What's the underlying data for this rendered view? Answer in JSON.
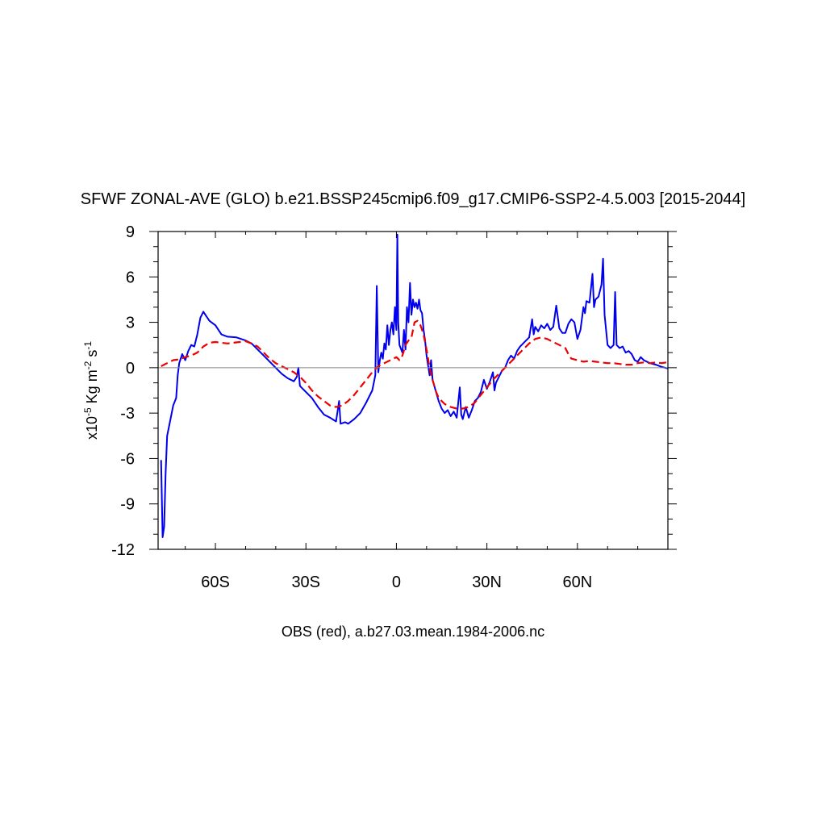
{
  "chart_data": {
    "type": "line",
    "title": "SFWF ZONAL-AVE (GLO) b.e21.BSSP245cmip6.f09_g17.CMIP6-SSP2-4.5.003 [2015-2044]",
    "subtitle": "OBS (red), a.b27.03.mean.1984-2006.nc",
    "ylabel": {
      "base": "x10",
      "exp1": "-5",
      "mid": " Kg m",
      "exp2": "-2",
      "mid2": " s",
      "exp3": "-1"
    },
    "xlim": [
      -79,
      90
    ],
    "ylim": [
      -12,
      9
    ],
    "x_ticks": [
      {
        "value": -60,
        "label": "60S"
      },
      {
        "value": -30,
        "label": "30S"
      },
      {
        "value": 0,
        "label": "0"
      },
      {
        "value": 30,
        "label": "30N"
      },
      {
        "value": 60,
        "label": "60N"
      }
    ],
    "y_ticks": [
      {
        "value": 9,
        "label": "9"
      },
      {
        "value": 6,
        "label": "6"
      },
      {
        "value": 3,
        "label": "3"
      },
      {
        "value": 0,
        "label": "0"
      },
      {
        "value": -3,
        "label": "-3"
      },
      {
        "value": -6,
        "label": "-6"
      },
      {
        "value": -9,
        "label": "-9"
      },
      {
        "value": -12,
        "label": "-12"
      }
    ],
    "zero_line": true,
    "series": [
      {
        "color": "#0000ee",
        "style": "solid",
        "points": [
          [
            -78,
            -6.1
          ],
          [
            -77.5,
            -11.2
          ],
          [
            -77,
            -10.5
          ],
          [
            -76.5,
            -7
          ],
          [
            -76,
            -4.5
          ],
          [
            -75,
            -3.5
          ],
          [
            -74,
            -2.5
          ],
          [
            -73,
            -2
          ],
          [
            -72.5,
            -0.5
          ],
          [
            -72,
            0.3
          ],
          [
            -71,
            0.9
          ],
          [
            -70,
            0.5
          ],
          [
            -69,
            1.1
          ],
          [
            -68,
            1.5
          ],
          [
            -67,
            1.4
          ],
          [
            -66,
            2.2
          ],
          [
            -65,
            3.3
          ],
          [
            -64,
            3.7
          ],
          [
            -63,
            3.4
          ],
          [
            -62,
            3.1
          ],
          [
            -60,
            2.8
          ],
          [
            -58,
            2.2
          ],
          [
            -56,
            2.05
          ],
          [
            -53,
            2.0
          ],
          [
            -50,
            1.8
          ],
          [
            -48,
            1.6
          ],
          [
            -46,
            1.2
          ],
          [
            -44,
            0.8
          ],
          [
            -42,
            0.4
          ],
          [
            -40,
            0.0
          ],
          [
            -38,
            -0.4
          ],
          [
            -36,
            -0.7
          ],
          [
            -34,
            -0.9
          ],
          [
            -33,
            -0.6
          ],
          [
            -32.5,
            0.0
          ],
          [
            -32,
            -1.2
          ],
          [
            -30,
            -1.6
          ],
          [
            -28,
            -2.0
          ],
          [
            -26,
            -2.6
          ],
          [
            -24,
            -3.1
          ],
          [
            -22,
            -3.3
          ],
          [
            -20,
            -3.55
          ],
          [
            -19,
            -2.2
          ],
          [
            -18.5,
            -3.7
          ],
          [
            -17,
            -3.6
          ],
          [
            -16,
            -3.7
          ],
          [
            -14,
            -3.4
          ],
          [
            -12,
            -3.0
          ],
          [
            -10,
            -2.3
          ],
          [
            -8,
            -1.5
          ],
          [
            -7,
            -0.5
          ],
          [
            -6.5,
            5.4
          ],
          [
            -6,
            -0.3
          ],
          [
            -5.5,
            0.5
          ],
          [
            -5,
            1.0
          ],
          [
            -4.5,
            0.6
          ],
          [
            -4,
            1.6
          ],
          [
            -3.5,
            1.2
          ],
          [
            -3,
            2.8
          ],
          [
            -2.5,
            1.5
          ],
          [
            -2,
            2.5
          ],
          [
            -1.5,
            3.0
          ],
          [
            -1,
            2.2
          ],
          [
            -0.5,
            4.0
          ],
          [
            0,
            2.5
          ],
          [
            0.3,
            8.8
          ],
          [
            0.6,
            3.0
          ],
          [
            1,
            1.5
          ],
          [
            2,
            1.0
          ],
          [
            2.5,
            2.5
          ],
          [
            3,
            1.2
          ],
          [
            3.5,
            4.0
          ],
          [
            4,
            3.0
          ],
          [
            4.5,
            5.6
          ],
          [
            5,
            3.5
          ],
          [
            5.5,
            4.5
          ],
          [
            6,
            4.0
          ],
          [
            6.5,
            4.3
          ],
          [
            7,
            3.9
          ],
          [
            7.5,
            4.5
          ],
          [
            8,
            3.8
          ],
          [
            8.5,
            3.6
          ],
          [
            9,
            2.5
          ],
          [
            9.5,
            1.8
          ],
          [
            10,
            0.8
          ],
          [
            11,
            -0.5
          ],
          [
            11.5,
            0.5
          ],
          [
            12,
            -0.8
          ],
          [
            13,
            -1.5
          ],
          [
            14,
            -2.2
          ],
          [
            15,
            -2.7
          ],
          [
            16,
            -3.0
          ],
          [
            17,
            -2.8
          ],
          [
            18,
            -3.2
          ],
          [
            19,
            -2.9
          ],
          [
            20,
            -3.3
          ],
          [
            21,
            -1.3
          ],
          [
            21.5,
            -3.1
          ],
          [
            22,
            -3.4
          ],
          [
            23,
            -2.6
          ],
          [
            24,
            -3.3
          ],
          [
            25,
            -2.8
          ],
          [
            26,
            -2.2
          ],
          [
            27,
            -2.0
          ],
          [
            28,
            -1.6
          ],
          [
            29,
            -0.8
          ],
          [
            30,
            -1.4
          ],
          [
            31,
            -0.9
          ],
          [
            32,
            -0.3
          ],
          [
            32.5,
            -1.5
          ],
          [
            33,
            -1.0
          ],
          [
            34,
            -0.6
          ],
          [
            35,
            -0.2
          ],
          [
            36,
            0.0
          ],
          [
            37,
            0.5
          ],
          [
            38,
            0.8
          ],
          [
            39,
            0.6
          ],
          [
            40,
            1.1
          ],
          [
            41,
            1.4
          ],
          [
            42,
            1.6
          ],
          [
            43,
            1.8
          ],
          [
            44,
            2.0
          ],
          [
            45,
            3.2
          ],
          [
            45.5,
            2.2
          ],
          [
            46,
            2.7
          ],
          [
            47,
            2.4
          ],
          [
            48,
            2.8
          ],
          [
            49,
            2.6
          ],
          [
            50,
            2.9
          ],
          [
            51,
            2.5
          ],
          [
            52,
            2.7
          ],
          [
            53,
            4.1
          ],
          [
            54,
            2.6
          ],
          [
            55,
            2.3
          ],
          [
            56,
            2.3
          ],
          [
            57,
            2.9
          ],
          [
            58,
            3.2
          ],
          [
            59,
            3.0
          ],
          [
            60,
            1.9
          ],
          [
            61,
            2.5
          ],
          [
            62,
            4.0
          ],
          [
            62.5,
            3.6
          ],
          [
            63,
            4.4
          ],
          [
            64,
            4.3
          ],
          [
            65,
            6.2
          ],
          [
            65.5,
            4.0
          ],
          [
            66,
            4.5
          ],
          [
            67,
            4.7
          ],
          [
            68,
            5.5
          ],
          [
            68.5,
            7.2
          ],
          [
            69,
            3.5
          ],
          [
            70,
            1.5
          ],
          [
            71,
            1.3
          ],
          [
            72,
            1.5
          ],
          [
            72.5,
            5.0
          ],
          [
            73,
            1.5
          ],
          [
            74,
            1.3
          ],
          [
            75,
            1.4
          ],
          [
            76,
            1.0
          ],
          [
            77,
            1.1
          ],
          [
            78,
            0.9
          ],
          [
            79,
            0.5
          ],
          [
            80,
            0.4
          ],
          [
            81,
            0.7
          ],
          [
            82,
            0.5
          ],
          [
            84,
            0.3
          ],
          [
            86,
            0.2
          ],
          [
            88,
            0.05
          ],
          [
            90,
            -0.05
          ]
        ]
      },
      {
        "color": "#ee0000",
        "style": "dashed",
        "points": [
          [
            -78,
            0.1
          ],
          [
            -76,
            0.3
          ],
          [
            -74,
            0.5
          ],
          [
            -72,
            0.55
          ],
          [
            -70,
            0.7
          ],
          [
            -68,
            0.8
          ],
          [
            -66,
            1.0
          ],
          [
            -64,
            1.4
          ],
          [
            -62,
            1.65
          ],
          [
            -60,
            1.7
          ],
          [
            -58,
            1.65
          ],
          [
            -56,
            1.6
          ],
          [
            -54,
            1.65
          ],
          [
            -52,
            1.7
          ],
          [
            -50,
            1.75
          ],
          [
            -48,
            1.6
          ],
          [
            -46,
            1.4
          ],
          [
            -44,
            1.0
          ],
          [
            -42,
            0.6
          ],
          [
            -40,
            0.3
          ],
          [
            -38,
            0.1
          ],
          [
            -36,
            -0.1
          ],
          [
            -34,
            -0.3
          ],
          [
            -32,
            -0.6
          ],
          [
            -30,
            -1.0
          ],
          [
            -28,
            -1.5
          ],
          [
            -26,
            -1.9
          ],
          [
            -24,
            -2.2
          ],
          [
            -22,
            -2.5
          ],
          [
            -20,
            -2.6
          ],
          [
            -18,
            -2.5
          ],
          [
            -16,
            -2.2
          ],
          [
            -14,
            -1.8
          ],
          [
            -12,
            -1.3
          ],
          [
            -10,
            -0.8
          ],
          [
            -8,
            -0.3
          ],
          [
            -6,
            0.1
          ],
          [
            -4,
            0.3
          ],
          [
            -2,
            0.5
          ],
          [
            0,
            0.7
          ],
          [
            1,
            0.5
          ],
          [
            2,
            0.8
          ],
          [
            3,
            1.5
          ],
          [
            4,
            1.8
          ],
          [
            5,
            2.0
          ],
          [
            6,
            3.0
          ],
          [
            7,
            3.1
          ],
          [
            8,
            2.8
          ],
          [
            9,
            2.2
          ],
          [
            10,
            1.2
          ],
          [
            11,
            0.0
          ],
          [
            12,
            -0.8
          ],
          [
            13,
            -1.5
          ],
          [
            14,
            -2.0
          ],
          [
            16,
            -2.4
          ],
          [
            18,
            -2.6
          ],
          [
            20,
            -2.7
          ],
          [
            22,
            -2.7
          ],
          [
            24,
            -2.6
          ],
          [
            26,
            -2.3
          ],
          [
            28,
            -1.8
          ],
          [
            30,
            -1.3
          ],
          [
            32,
            -0.8
          ],
          [
            34,
            -0.4
          ],
          [
            36,
            0.0
          ],
          [
            38,
            0.4
          ],
          [
            40,
            0.8
          ],
          [
            42,
            1.2
          ],
          [
            44,
            1.6
          ],
          [
            46,
            1.9
          ],
          [
            48,
            2.0
          ],
          [
            50,
            1.9
          ],
          [
            52,
            1.7
          ],
          [
            54,
            1.5
          ],
          [
            56,
            1.3
          ],
          [
            57,
            0.9
          ],
          [
            58,
            0.6
          ],
          [
            60,
            0.5
          ],
          [
            62,
            0.4
          ],
          [
            64,
            0.45
          ],
          [
            66,
            0.4
          ],
          [
            68,
            0.35
          ],
          [
            70,
            0.3
          ],
          [
            72,
            0.3
          ],
          [
            74,
            0.25
          ],
          [
            76,
            0.2
          ],
          [
            78,
            0.2
          ],
          [
            80,
            0.3
          ],
          [
            82,
            0.35
          ],
          [
            84,
            0.3
          ],
          [
            86,
            0.35
          ],
          [
            88,
            0.3
          ],
          [
            89.5,
            0.35
          ]
        ]
      }
    ]
  }
}
